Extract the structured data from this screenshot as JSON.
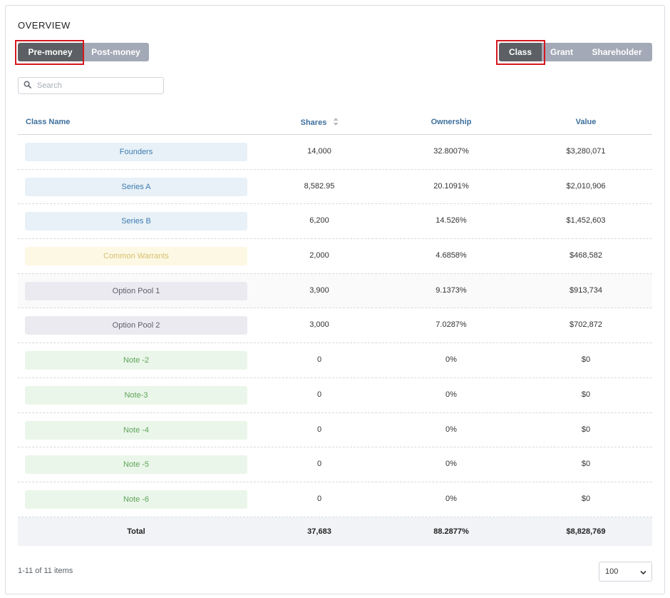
{
  "overview": {
    "title": "OVERVIEW"
  },
  "money_toggle": {
    "pre_label": "Pre-money",
    "post_label": "Post-money",
    "selected": "Pre-money"
  },
  "view_toggle": {
    "class_label": "Class",
    "grant_label": "Grant",
    "shareholder_label": "Shareholder",
    "selected": "Class"
  },
  "search": {
    "placeholder": "Search",
    "value": "",
    "icon": "search-icon"
  },
  "table": {
    "headers": {
      "class_name": "Class Name",
      "shares": "Shares",
      "ownership": "Ownership",
      "value": "Value"
    },
    "rows": [
      {
        "name": "Founders",
        "shares": "14,000",
        "ownership": "32.8007%",
        "value": "$3,280,071",
        "chip_color": "#e8f1f7"
      },
      {
        "name": "Series A",
        "shares": "8,582.95",
        "ownership": "20.1091%",
        "value": "$2,010,906",
        "chip_color": "#e8f1f7"
      },
      {
        "name": "Series B",
        "shares": "6,200",
        "ownership": "14.526%",
        "value": "$1,452,603",
        "chip_color": "#e8f1f7"
      },
      {
        "name": "Common Warrants",
        "shares": "2,000",
        "ownership": "4.6858%",
        "value": "$468,582",
        "chip_color": "#fcf8e3"
      },
      {
        "name": "Option Pool 1",
        "shares": "3,900",
        "ownership": "9.1373%",
        "value": "$913,734",
        "chip_color": "#ebeaf0"
      },
      {
        "name": "Option Pool 2",
        "shares": "3,000",
        "ownership": "7.0287%",
        "value": "$702,872",
        "chip_color": "#ebeaf0"
      },
      {
        "name": "Note -2",
        "shares": "0",
        "ownership": "0%",
        "value": "$0",
        "chip_color": "#eaf6e9"
      },
      {
        "name": "Note-3",
        "shares": "0",
        "ownership": "0%",
        "value": "$0",
        "chip_color": "#eaf6e9"
      },
      {
        "name": "Note -4",
        "shares": "0",
        "ownership": "0%",
        "value": "$0",
        "chip_color": "#eaf6e9"
      },
      {
        "name": "Note -5",
        "shares": "0",
        "ownership": "0%",
        "value": "$0",
        "chip_color": "#eaf6e9"
      },
      {
        "name": "Note -6",
        "shares": "0",
        "ownership": "0%",
        "value": "$0",
        "chip_color": "#eaf6e9"
      }
    ],
    "total": {
      "label": "Total",
      "shares": "37,683",
      "ownership": "88.2877%",
      "value": "$8,828,769"
    }
  },
  "pagination": {
    "info": "1-11 of 11 items",
    "page_size": "100"
  },
  "colors": {
    "active_button": "#5c5f63",
    "inactive_button": "#a3a9b6",
    "highlight": "#d4181f",
    "header_text": "#3d6f9c"
  }
}
